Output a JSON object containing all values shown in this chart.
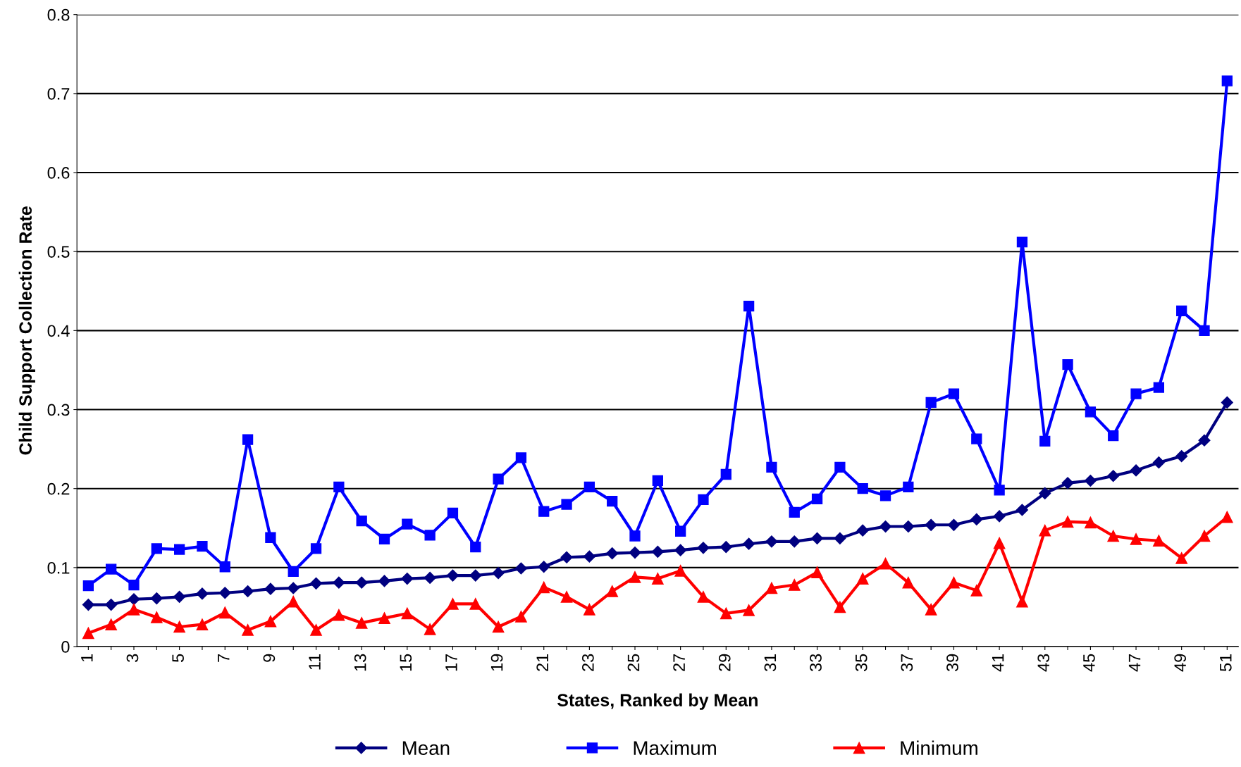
{
  "chart_data": {
    "type": "line",
    "xlabel": "States, Ranked by Mean",
    "ylabel": "Child Support Collection Rate",
    "categories": [
      "1",
      null,
      "3",
      null,
      "5",
      null,
      "7",
      null,
      "9",
      null,
      "11",
      null,
      "13",
      null,
      "15",
      null,
      "17",
      null,
      "19",
      null,
      "21",
      null,
      "23",
      null,
      "25",
      null,
      "27",
      null,
      "29",
      null,
      "31",
      null,
      "33",
      null,
      "35",
      null,
      "37",
      null,
      "39",
      null,
      "41",
      null,
      "43",
      null,
      "45",
      null,
      "47",
      null,
      "49",
      null,
      "51"
    ],
    "series": [
      {
        "name": "Mean",
        "color": "#000080",
        "marker": "diamond",
        "values": [
          0.053,
          0.053,
          0.06,
          0.061,
          0.063,
          0.067,
          0.068,
          0.07,
          0.073,
          0.074,
          0.08,
          0.081,
          0.081,
          0.083,
          0.086,
          0.087,
          0.09,
          0.09,
          0.093,
          0.099,
          0.101,
          0.113,
          0.114,
          0.118,
          0.119,
          0.12,
          0.122,
          0.125,
          0.126,
          0.13,
          0.133,
          0.133,
          0.137,
          0.137,
          0.147,
          0.152,
          0.152,
          0.154,
          0.154,
          0.161,
          0.165,
          0.173,
          0.194,
          0.207,
          0.21,
          0.216,
          0.223,
          0.233,
          0.241,
          0.261,
          0.309
        ]
      },
      {
        "name": "Maximum",
        "color": "#0000ff",
        "marker": "square",
        "values": [
          0.077,
          0.098,
          0.078,
          0.124,
          0.123,
          0.127,
          0.101,
          0.262,
          0.138,
          0.095,
          0.124,
          0.202,
          0.159,
          0.136,
          0.155,
          0.141,
          0.169,
          0.126,
          0.212,
          0.239,
          0.171,
          0.18,
          0.202,
          0.184,
          0.14,
          0.21,
          0.146,
          0.186,
          0.218,
          0.431,
          0.227,
          0.17,
          0.187,
          0.227,
          0.2,
          0.191,
          0.202,
          0.309,
          0.32,
          0.263,
          0.198,
          0.512,
          0.26,
          0.357,
          0.297,
          0.267,
          0.32,
          0.328,
          0.425,
          0.4,
          0.716
        ]
      },
      {
        "name": "Minimum",
        "color": "#ff0000",
        "marker": "triangle",
        "values": [
          0.017,
          0.028,
          0.047,
          0.037,
          0.025,
          0.028,
          0.043,
          0.021,
          0.032,
          0.057,
          0.021,
          0.04,
          0.03,
          0.036,
          0.042,
          0.022,
          0.054,
          0.054,
          0.025,
          0.038,
          0.075,
          0.063,
          0.047,
          0.07,
          0.088,
          0.086,
          0.096,
          0.063,
          0.042,
          0.046,
          0.074,
          0.078,
          0.094,
          0.05,
          0.086,
          0.105,
          0.081,
          0.047,
          0.081,
          0.071,
          0.131,
          0.057,
          0.147,
          0.158,
          0.157,
          0.14,
          0.136,
          0.134,
          0.112,
          0.14,
          0.164
        ]
      }
    ],
    "ylim": [
      0,
      0.8
    ],
    "yticks": [
      0,
      0.1,
      0.2,
      0.3,
      0.4,
      0.5,
      0.6,
      0.7,
      0.8
    ],
    "grid": "y",
    "legend": "bottom",
    "line_style": "solid"
  }
}
